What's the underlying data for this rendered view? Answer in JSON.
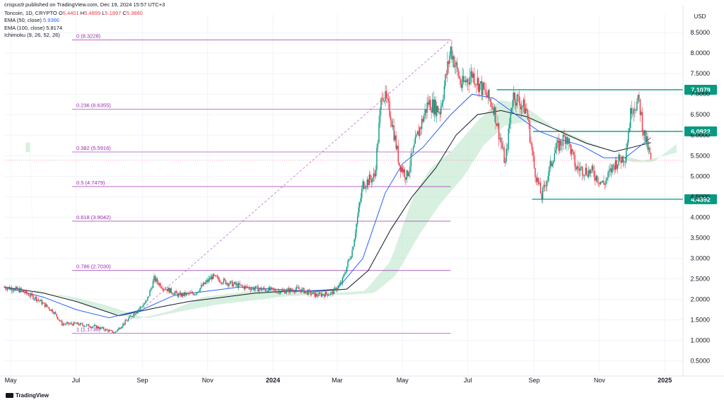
{
  "header": {
    "publisher_line": "crispus9 published on TradingView.com, Dec 19, 2024 15:57 UTC+3",
    "symbol": "Toncoin, 1D, CRYPTO",
    "ohlc": {
      "o_label": "O",
      "o": "5.4401",
      "h_label": "H",
      "h": "5.4899",
      "l_label": "L",
      "l": "5.1897",
      "c_label": "C",
      "c": "5.3880"
    },
    "indicators": [
      {
        "label": "EMA (50, close)",
        "value": "5.9366",
        "color": "#2962ff"
      },
      {
        "label": "EMA (100, close)",
        "value": "5.8174",
        "color": "#131722"
      },
      {
        "label": "Ichimoku (9, 26, 52, 26)",
        "value": "",
        "color": "#131722"
      }
    ]
  },
  "footer": {
    "brand": "TradingView"
  },
  "colors": {
    "up": "#089981",
    "down": "#f23645",
    "ema50": "#2962ff",
    "ema100": "#131722",
    "fib": "#9c27b0",
    "level": "#089981",
    "cloud_green": "#b7e4c7",
    "cloud_red": "#f8c9c9",
    "grid": "#f0f3fa",
    "axis_text": "#131722"
  },
  "chart_data": {
    "type": "candlestick",
    "title": "Toncoin, 1D, CRYPTO",
    "currency_label": "USD",
    "ylim": [
      0.2,
      8.95
    ],
    "y_ticks": [
      "8.5000",
      "8.0000",
      "7.5000",
      "7.0000",
      "6.5000",
      "6.0000",
      "5.5000",
      "5.0000",
      "4.5000",
      "4.0000",
      "3.5000",
      "3.0000",
      "2.5000",
      "2.0000",
      "1.5000",
      "1.0000",
      "0.5000"
    ],
    "y_tick_values": [
      8.5,
      8.0,
      7.5,
      7.0,
      6.5,
      6.0,
      5.5,
      5.0,
      4.5,
      4.0,
      3.5,
      3.0,
      2.5,
      2.0,
      1.5,
      1.0,
      0.5
    ],
    "x_ticks": [
      "May",
      "Jul",
      "Sep",
      "Nov",
      "2024",
      "Mar",
      "May",
      "Jul",
      "Sep",
      "Nov",
      "2025"
    ],
    "x_tick_bold": [
      false,
      false,
      false,
      false,
      true,
      false,
      false,
      false,
      false,
      false,
      true
    ],
    "x_tick_dates": [
      "2023-05-01",
      "2023-07-01",
      "2023-09-01",
      "2023-11-01",
      "2024-01-01",
      "2024-03-01",
      "2024-05-01",
      "2024-07-01",
      "2024-09-01",
      "2024-11-01",
      "2025-01-01"
    ],
    "x_range": [
      "2023-04-25",
      "2025-01-18"
    ],
    "fib_levels": [
      {
        "label": "0 (8.3228)",
        "value": 8.3228
      },
      {
        "label": "0.236 (6.6355)",
        "value": 6.6355
      },
      {
        "label": "0.382 (5.5916)",
        "value": 5.5916
      },
      {
        "label": "0.5 (4.7479)",
        "value": 4.7479
      },
      {
        "label": "0.618 (3.9042)",
        "value": 3.9042
      },
      {
        "label": "0.786 (2.7030)",
        "value": 2.703
      },
      {
        "label": "1 (1.1730)",
        "value": 1.173
      }
    ],
    "fib_range": {
      "start_date": "2023-08-06",
      "end_date": "2024-06-15",
      "low": 1.173,
      "high": 8.3228
    },
    "horizontal_levels": [
      {
        "label": "7.1079",
        "value": 7.1079,
        "start_date": "2024-07-28"
      },
      {
        "label": "6.0922",
        "value": 6.0922,
        "start_date": "2024-08-31"
      },
      {
        "label": "4.4392",
        "value": 4.4392,
        "start_date": "2024-08-30"
      }
    ],
    "current_price": 5.388,
    "price_path": [
      [
        "2023-04-25",
        2.3
      ],
      [
        "2023-05-10",
        2.22
      ],
      [
        "2023-05-25",
        2.02
      ],
      [
        "2023-06-10",
        1.7
      ],
      [
        "2023-06-18",
        1.4
      ],
      [
        "2023-07-01",
        1.4
      ],
      [
        "2023-07-20",
        1.33
      ],
      [
        "2023-08-06",
        1.19
      ],
      [
        "2023-08-20",
        1.55
      ],
      [
        "2023-09-05",
        1.95
      ],
      [
        "2023-09-12",
        2.5
      ],
      [
        "2023-09-20",
        2.3
      ],
      [
        "2023-10-05",
        2.1
      ],
      [
        "2023-10-20",
        2.15
      ],
      [
        "2023-11-05",
        2.55
      ],
      [
        "2023-11-20",
        2.4
      ],
      [
        "2023-12-05",
        2.3
      ],
      [
        "2023-12-20",
        2.25
      ],
      [
        "2024-01-10",
        2.2
      ],
      [
        "2024-01-25",
        2.25
      ],
      [
        "2024-02-10",
        2.1
      ],
      [
        "2024-02-25",
        2.15
      ],
      [
        "2024-03-05",
        2.4
      ],
      [
        "2024-03-15",
        3.2
      ],
      [
        "2024-03-25",
        4.8
      ],
      [
        "2024-04-05",
        5.0
      ],
      [
        "2024-04-12",
        7.1
      ],
      [
        "2024-04-20",
        6.5
      ],
      [
        "2024-04-28",
        5.3
      ],
      [
        "2024-05-05",
        5.0
      ],
      [
        "2024-05-15",
        6.0
      ],
      [
        "2024-05-25",
        6.8
      ],
      [
        "2024-06-05",
        6.6
      ],
      [
        "2024-06-15",
        8.1
      ],
      [
        "2024-06-25",
        7.2
      ],
      [
        "2024-07-05",
        7.5
      ],
      [
        "2024-07-15",
        7.1
      ],
      [
        "2024-07-25",
        6.7
      ],
      [
        "2024-08-05",
        5.3
      ],
      [
        "2024-08-12",
        7.0
      ],
      [
        "2024-08-25",
        6.6
      ],
      [
        "2024-09-01",
        5.2
      ],
      [
        "2024-09-08",
        4.5
      ],
      [
        "2024-09-20",
        5.6
      ],
      [
        "2024-10-01",
        6.0
      ],
      [
        "2024-10-10",
        5.2
      ],
      [
        "2024-10-25",
        5.1
      ],
      [
        "2024-11-05",
        4.8
      ],
      [
        "2024-11-15",
        5.3
      ],
      [
        "2024-11-25",
        5.5
      ],
      [
        "2024-12-01",
        6.7
      ],
      [
        "2024-12-08",
        6.8
      ],
      [
        "2024-12-12",
        6.1
      ],
      [
        "2024-12-16",
        5.7
      ],
      [
        "2024-12-19",
        5.39
      ]
    ],
    "ema50_path": [
      [
        "2023-04-25",
        2.3
      ],
      [
        "2023-06-01",
        2.05
      ],
      [
        "2023-07-01",
        1.75
      ],
      [
        "2023-08-01",
        1.55
      ],
      [
        "2023-09-01",
        1.75
      ],
      [
        "2023-10-01",
        2.1
      ],
      [
        "2023-11-01",
        2.2
      ],
      [
        "2023-12-01",
        2.3
      ],
      [
        "2024-01-01",
        2.25
      ],
      [
        "2024-02-01",
        2.2
      ],
      [
        "2024-03-01",
        2.25
      ],
      [
        "2024-03-25",
        3.0
      ],
      [
        "2024-04-15",
        4.6
      ],
      [
        "2024-05-01",
        5.3
      ],
      [
        "2024-05-20",
        5.7
      ],
      [
        "2024-06-15",
        6.5
      ],
      [
        "2024-07-05",
        7.0
      ],
      [
        "2024-07-25",
        6.9
      ],
      [
        "2024-08-15",
        6.5
      ],
      [
        "2024-09-05",
        6.1
      ],
      [
        "2024-09-25",
        5.9
      ],
      [
        "2024-10-15",
        5.75
      ],
      [
        "2024-11-05",
        5.45
      ],
      [
        "2024-11-25",
        5.45
      ],
      [
        "2024-12-19",
        5.94
      ]
    ],
    "ema100_path": [
      [
        "2023-04-25",
        2.3
      ],
      [
        "2023-06-01",
        2.15
      ],
      [
        "2023-07-01",
        1.95
      ],
      [
        "2023-08-10",
        1.6
      ],
      [
        "2023-09-15",
        1.8
      ],
      [
        "2023-10-15",
        1.95
      ],
      [
        "2023-11-15",
        2.05
      ],
      [
        "2023-12-15",
        2.15
      ],
      [
        "2024-01-15",
        2.2
      ],
      [
        "2024-02-15",
        2.2
      ],
      [
        "2024-03-10",
        2.25
      ],
      [
        "2024-03-30",
        2.7
      ],
      [
        "2024-04-20",
        3.7
      ],
      [
        "2024-05-10",
        4.5
      ],
      [
        "2024-06-01",
        5.2
      ],
      [
        "2024-06-20",
        6.0
      ],
      [
        "2024-07-10",
        6.5
      ],
      [
        "2024-08-01",
        6.6
      ],
      [
        "2024-08-25",
        6.45
      ],
      [
        "2024-09-20",
        6.15
      ],
      [
        "2024-10-20",
        5.8
      ],
      [
        "2024-11-15",
        5.6
      ],
      [
        "2024-12-01",
        5.7
      ],
      [
        "2024-12-19",
        5.82
      ]
    ]
  }
}
